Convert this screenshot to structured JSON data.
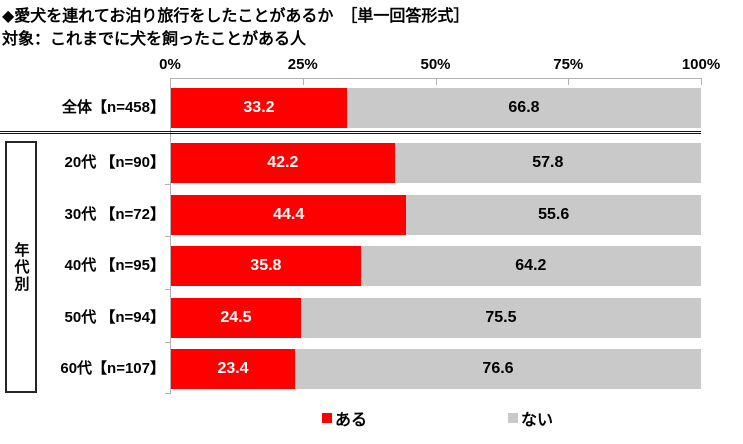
{
  "header": {
    "title": "◆愛犬を連れてお泊り旅行をしたことがあるか　［単一回答形式］",
    "subtitle": "対象：これまでに犬を飼ったことがある人"
  },
  "chart_data": {
    "type": "bar",
    "orientation": "horizontal",
    "stacked": true,
    "unit": "%",
    "xlim": [
      0,
      100
    ],
    "x_ticks": [
      "0%",
      "25%",
      "50%",
      "75%",
      "100%"
    ],
    "grid": false,
    "group_label": "年代別",
    "categories": [
      "全体【n=458】",
      "20代 【n=90】",
      "30代 【n=72】",
      "40代 【n=95】",
      "50代 【n=94】",
      "60代【n=107】"
    ],
    "series": [
      {
        "name": "ある",
        "color": "#ff0000",
        "values": [
          33.2,
          42.2,
          44.4,
          35.8,
          24.5,
          23.4
        ]
      },
      {
        "name": "ない",
        "color": "#c9c9c9",
        "values": [
          66.8,
          57.8,
          55.6,
          64.2,
          75.5,
          76.6
        ]
      }
    ],
    "legend_position": "bottom"
  },
  "colors": {
    "axis_line": "#b3b3b3",
    "separator_line": "#141414",
    "value_label_on_yes": "#ffffff",
    "value_label_on_no": "#000000"
  }
}
